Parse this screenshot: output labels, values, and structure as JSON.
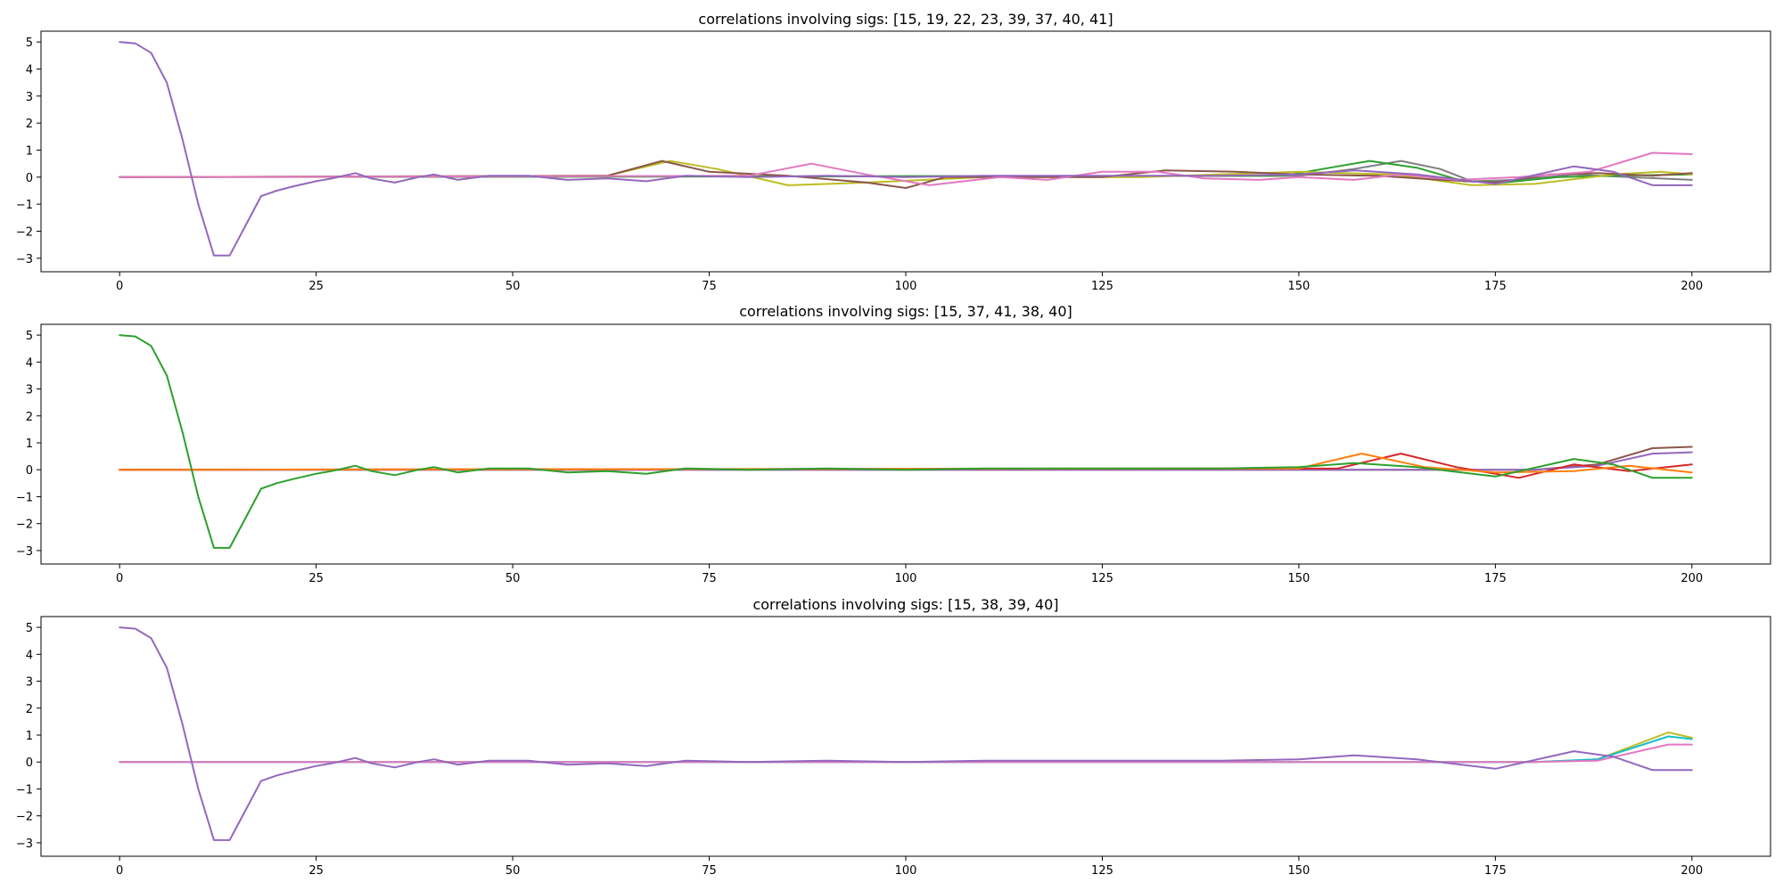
{
  "figure": {
    "panels": [
      {
        "title": "correlations involving sigs: [15, 19, 22, 23, 39, 37, 40, 41]"
      },
      {
        "title": "correlations involving sigs: [15, 37, 41, 38, 40]"
      },
      {
        "title": "correlations involving sigs: [15, 38, 39, 40]"
      }
    ]
  },
  "chart_data": [
    {
      "type": "line",
      "title": "correlations involving sigs: [15, 19, 22, 23, 39, 37, 40, 41]",
      "xlabel": "",
      "ylabel": "",
      "xlim": [
        -10,
        210
      ],
      "ylim": [
        -3.5,
        5.4
      ],
      "xticks": [
        0,
        25,
        50,
        75,
        100,
        125,
        150,
        175,
        200
      ],
      "yticks": [
        -3,
        -2,
        -1,
        0,
        1,
        2,
        3,
        4,
        5
      ],
      "grid": false,
      "series": [
        {
          "color": "#7f7f7f",
          "points": [
            [
              0,
              0
            ],
            [
              150,
              0.05
            ],
            [
              157,
              0.3
            ],
            [
              163,
              0.6
            ],
            [
              168,
              0.3
            ],
            [
              172,
              -0.15
            ],
            [
              178,
              -0.1
            ],
            [
              185,
              0.1
            ],
            [
              192,
              0
            ],
            [
              200,
              -0.1
            ]
          ]
        },
        {
          "color": "#2ca02c",
          "points": [
            [
              0,
              0
            ],
            [
              148,
              0.05
            ],
            [
              153,
              0.3
            ],
            [
              159,
              0.6
            ],
            [
              165,
              0.35
            ],
            [
              171,
              -0.15
            ],
            [
              176,
              -0.2
            ],
            [
              183,
              0
            ],
            [
              190,
              0.05
            ],
            [
              200,
              0.1
            ]
          ]
        },
        {
          "color": "#bcbd22",
          "points": [
            [
              0,
              0
            ],
            [
              62,
              0.05
            ],
            [
              70,
              0.6
            ],
            [
              76,
              0.3
            ],
            [
              85,
              -0.3
            ],
            [
              95,
              -0.2
            ],
            [
              110,
              0
            ],
            [
              130,
              0
            ],
            [
              150,
              0.2
            ],
            [
              162,
              0.1
            ],
            [
              172,
              -0.3
            ],
            [
              180,
              -0.25
            ],
            [
              190,
              0.1
            ],
            [
              196,
              0.2
            ],
            [
              200,
              0.1
            ]
          ]
        },
        {
          "color": "#8c564b",
          "points": [
            [
              0,
              0
            ],
            [
              62,
              0.05
            ],
            [
              69,
              0.6
            ],
            [
              75,
              0.2
            ],
            [
              85,
              0.05
            ],
            [
              95,
              -0.2
            ],
            [
              100,
              -0.4
            ],
            [
              105,
              0
            ],
            [
              125,
              0
            ],
            [
              133,
              0.25
            ],
            [
              142,
              0.2
            ],
            [
              150,
              0.1
            ],
            [
              160,
              0.05
            ],
            [
              168,
              -0.1
            ],
            [
              175,
              -0.2
            ],
            [
              182,
              0.1
            ],
            [
              188,
              0.15
            ],
            [
              195,
              0.05
            ],
            [
              200,
              0.15
            ]
          ]
        },
        {
          "color": "#e377c2",
          "points": [
            [
              0,
              0
            ],
            [
              80,
              0.05
            ],
            [
              88,
              0.5
            ],
            [
              95,
              0.1
            ],
            [
              103,
              -0.3
            ],
            [
              112,
              0
            ],
            [
              118,
              -0.1
            ],
            [
              125,
              0.2
            ],
            [
              132,
              0.2
            ],
            [
              138,
              -0.05
            ],
            [
              145,
              -0.1
            ],
            [
              150,
              0
            ],
            [
              157,
              -0.1
            ],
            [
              163,
              0.1
            ],
            [
              170,
              -0.1
            ],
            [
              178,
              0
            ],
            [
              187,
              0.2
            ],
            [
              195,
              0.9
            ],
            [
              200,
              0.85
            ]
          ]
        },
        {
          "color": "#9467bd",
          "points": [
            [
              0,
              5
            ],
            [
              2,
              4.95
            ],
            [
              4,
              4.6
            ],
            [
              6,
              3.5
            ],
            [
              8,
              1.4
            ],
            [
              10,
              -1.0
            ],
            [
              12,
              -2.9
            ],
            [
              14,
              -2.9
            ],
            [
              16,
              -1.8
            ],
            [
              18,
              -0.7
            ],
            [
              20,
              -0.5
            ],
            [
              22,
              -0.35
            ],
            [
              25,
              -0.15
            ],
            [
              27,
              -0.05
            ],
            [
              30,
              0.15
            ],
            [
              32,
              -0.05
            ],
            [
              35,
              -0.2
            ],
            [
              38,
              0
            ],
            [
              40,
              0.1
            ],
            [
              43,
              -0.1
            ],
            [
              47,
              0.05
            ],
            [
              52,
              0.05
            ],
            [
              57,
              -0.1
            ],
            [
              62,
              -0.05
            ],
            [
              67,
              -0.15
            ],
            [
              72,
              0.05
            ],
            [
              80,
              0
            ],
            [
              90,
              0.05
            ],
            [
              100,
              0
            ],
            [
              110,
              0.05
            ],
            [
              120,
              0.05
            ],
            [
              130,
              0.05
            ],
            [
              140,
              0.05
            ],
            [
              150,
              0.1
            ],
            [
              157,
              0.25
            ],
            [
              165,
              0.1
            ],
            [
              175,
              -0.25
            ],
            [
              185,
              0.4
            ],
            [
              190,
              0.2
            ],
            [
              195,
              -0.3
            ],
            [
              200,
              -0.3
            ]
          ]
        }
      ]
    },
    {
      "type": "line",
      "title": "correlations involving sigs: [15, 37, 41, 38, 40]",
      "xlabel": "",
      "ylabel": "",
      "xlim": [
        -10,
        210
      ],
      "ylim": [
        -3.5,
        5.4
      ],
      "xticks": [
        0,
        25,
        50,
        75,
        100,
        125,
        150,
        175,
        200
      ],
      "yticks": [
        -3,
        -2,
        -1,
        0,
        1,
        2,
        3,
        4,
        5
      ],
      "grid": false,
      "series": [
        {
          "color": "#8c564b",
          "points": [
            [
              0,
              0
            ],
            [
              180,
              0
            ],
            [
              188,
              0.2
            ],
            [
              195,
              0.8
            ],
            [
              200,
              0.85
            ]
          ]
        },
        {
          "color": "#9467bd",
          "points": [
            [
              0,
              0
            ],
            [
              180,
              0
            ],
            [
              188,
              0.15
            ],
            [
              195,
              0.6
            ],
            [
              200,
              0.65
            ]
          ]
        },
        {
          "color": "#d62728",
          "points": [
            [
              0,
              0
            ],
            [
              155,
              0.05
            ],
            [
              163,
              0.6
            ],
            [
              170,
              0.1
            ],
            [
              178,
              -0.3
            ],
            [
              185,
              0.2
            ],
            [
              192,
              -0.05
            ],
            [
              200,
              0.2
            ]
          ]
        },
        {
          "color": "#ff7f0e",
          "points": [
            [
              0,
              0
            ],
            [
              150,
              0.05
            ],
            [
              158,
              0.6
            ],
            [
              166,
              0.1
            ],
            [
              175,
              -0.1
            ],
            [
              185,
              -0.05
            ],
            [
              192,
              0.15
            ],
            [
              200,
              -0.1
            ]
          ]
        },
        {
          "color": "#2ca02c",
          "points": [
            [
              0,
              5
            ],
            [
              2,
              4.95
            ],
            [
              4,
              4.6
            ],
            [
              6,
              3.5
            ],
            [
              8,
              1.4
            ],
            [
              10,
              -1.0
            ],
            [
              12,
              -2.9
            ],
            [
              14,
              -2.9
            ],
            [
              16,
              -1.8
            ],
            [
              18,
              -0.7
            ],
            [
              20,
              -0.5
            ],
            [
              22,
              -0.35
            ],
            [
              25,
              -0.15
            ],
            [
              27,
              -0.05
            ],
            [
              30,
              0.15
            ],
            [
              32,
              -0.05
            ],
            [
              35,
              -0.2
            ],
            [
              38,
              0
            ],
            [
              40,
              0.1
            ],
            [
              43,
              -0.1
            ],
            [
              47,
              0.05
            ],
            [
              52,
              0.05
            ],
            [
              57,
              -0.1
            ],
            [
              62,
              -0.05
            ],
            [
              67,
              -0.15
            ],
            [
              72,
              0.05
            ],
            [
              80,
              0
            ],
            [
              90,
              0.05
            ],
            [
              100,
              0
            ],
            [
              110,
              0.05
            ],
            [
              120,
              0.05
            ],
            [
              130,
              0.05
            ],
            [
              140,
              0.05
            ],
            [
              150,
              0.1
            ],
            [
              157,
              0.25
            ],
            [
              165,
              0.1
            ],
            [
              175,
              -0.25
            ],
            [
              185,
              0.4
            ],
            [
              190,
              0.2
            ],
            [
              195,
              -0.3
            ],
            [
              200,
              -0.3
            ]
          ]
        }
      ]
    },
    {
      "type": "line",
      "title": "correlations involving sigs: [15, 38, 39, 40]",
      "xlabel": "",
      "ylabel": "",
      "xlim": [
        -10,
        210
      ],
      "ylim": [
        -3.5,
        5.4
      ],
      "xticks": [
        0,
        25,
        50,
        75,
        100,
        125,
        150,
        175,
        200
      ],
      "yticks": [
        -3,
        -2,
        -1,
        0,
        1,
        2,
        3,
        4,
        5
      ],
      "grid": false,
      "series": [
        {
          "color": "#bcbd22",
          "points": [
            [
              0,
              0
            ],
            [
              180,
              0
            ],
            [
              188,
              0.1
            ],
            [
              197,
              1.1
            ],
            [
              200,
              0.9
            ]
          ]
        },
        {
          "color": "#17becf",
          "points": [
            [
              0,
              0
            ],
            [
              180,
              0
            ],
            [
              188,
              0.1
            ],
            [
              197,
              0.95
            ],
            [
              200,
              0.85
            ]
          ]
        },
        {
          "color": "#e377c2",
          "points": [
            [
              0,
              0
            ],
            [
              180,
              0
            ],
            [
              188,
              0.05
            ],
            [
              197,
              0.65
            ],
            [
              200,
              0.65
            ]
          ]
        },
        {
          "color": "#9467bd",
          "points": [
            [
              0,
              5
            ],
            [
              2,
              4.95
            ],
            [
              4,
              4.6
            ],
            [
              6,
              3.5
            ],
            [
              8,
              1.4
            ],
            [
              10,
              -1.0
            ],
            [
              12,
              -2.9
            ],
            [
              14,
              -2.9
            ],
            [
              16,
              -1.8
            ],
            [
              18,
              -0.7
            ],
            [
              20,
              -0.5
            ],
            [
              22,
              -0.35
            ],
            [
              25,
              -0.15
            ],
            [
              27,
              -0.05
            ],
            [
              30,
              0.15
            ],
            [
              32,
              -0.05
            ],
            [
              35,
              -0.2
            ],
            [
              38,
              0
            ],
            [
              40,
              0.1
            ],
            [
              43,
              -0.1
            ],
            [
              47,
              0.05
            ],
            [
              52,
              0.05
            ],
            [
              57,
              -0.1
            ],
            [
              62,
              -0.05
            ],
            [
              67,
              -0.15
            ],
            [
              72,
              0.05
            ],
            [
              80,
              0
            ],
            [
              90,
              0.05
            ],
            [
              100,
              0
            ],
            [
              110,
              0.05
            ],
            [
              120,
              0.05
            ],
            [
              130,
              0.05
            ],
            [
              140,
              0.05
            ],
            [
              150,
              0.1
            ],
            [
              157,
              0.25
            ],
            [
              165,
              0.1
            ],
            [
              175,
              -0.25
            ],
            [
              185,
              0.4
            ],
            [
              190,
              0.2
            ],
            [
              195,
              -0.3
            ],
            [
              200,
              -0.3
            ]
          ]
        }
      ]
    }
  ]
}
